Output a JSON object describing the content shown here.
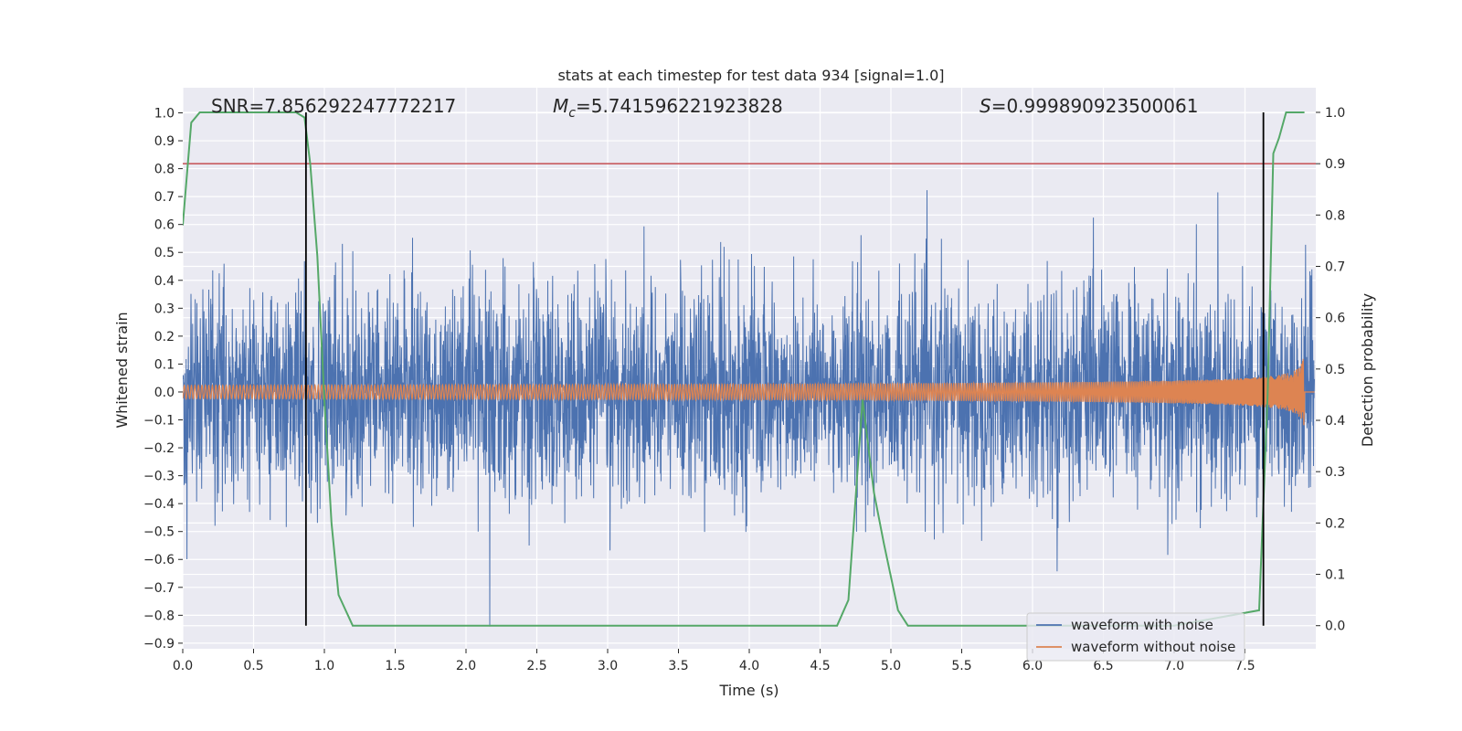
{
  "chart_data": {
    "type": "line",
    "title": "stats at each timestep for test data 934 [signal=1.0]",
    "xlabel": "Time (s)",
    "ylabel": "Whitened strain",
    "y2label": "Detection probability",
    "xlim": [
      0.0,
      8.0
    ],
    "ylim": [
      -0.92,
      1.09
    ],
    "y2lim": [
      -0.045,
      1.048
    ],
    "x_ticks": [
      "0.0",
      "0.5",
      "1.0",
      "1.5",
      "2.0",
      "2.5",
      "3.0",
      "3.5",
      "4.0",
      "4.5",
      "5.0",
      "5.5",
      "6.0",
      "6.5",
      "7.0",
      "7.5"
    ],
    "y_ticks": [
      "−0.9",
      "−0.8",
      "−0.7",
      "−0.6",
      "−0.5",
      "−0.4",
      "−0.3",
      "−0.2",
      "−0.1",
      "0.0",
      "0.1",
      "0.2",
      "0.3",
      "0.4",
      "0.5",
      "0.6",
      "0.7",
      "0.8",
      "0.9",
      "1.0"
    ],
    "y2_ticks": [
      "0.0",
      "0.1",
      "0.2",
      "0.3",
      "0.4",
      "0.5",
      "0.6",
      "0.7",
      "0.8",
      "0.9",
      "1.0"
    ],
    "grid": true,
    "legend": {
      "position": "lower-right",
      "entries": [
        "waveform with noise",
        "waveform without noise"
      ]
    },
    "annotations": {
      "snr": "SNR=7.856292247772217",
      "mc_symbol": "M",
      "mc_sub": "c",
      "mc_value": "=5.741596221923828",
      "s_symbol": "S",
      "s_value": "=0.999890923500061"
    },
    "series": [
      {
        "name": "waveform with noise",
        "color": "#4c72b0",
        "envelope_max": 1.0,
        "envelope_min": -0.84,
        "typical_amplitude": 0.45,
        "sample_rate_hz": 512
      },
      {
        "name": "waveform without noise",
        "color": "#dd8452",
        "kind": "chirp",
        "merger_time_s": 7.92,
        "peak_amplitude": 0.16
      },
      {
        "name": "Detection probability",
        "axis": "right",
        "color": "#55a868",
        "x": [
          0.0,
          0.06,
          0.12,
          0.2,
          0.5,
          0.8,
          0.86,
          0.9,
          0.95,
          1.0,
          1.05,
          1.1,
          1.2,
          1.5,
          2.0,
          3.0,
          4.0,
          4.5,
          4.62,
          4.7,
          4.8,
          4.88,
          4.95,
          5.05,
          5.12,
          5.2,
          5.5,
          6.0,
          7.0,
          7.6,
          7.66,
          7.7,
          7.74,
          7.79,
          7.85,
          7.92
        ],
        "y": [
          0.78,
          0.98,
          1.0,
          1.0,
          1.0,
          1.0,
          0.99,
          0.9,
          0.72,
          0.44,
          0.2,
          0.06,
          0.0,
          0.0,
          0.0,
          0.0,
          0.0,
          0.0,
          0.0,
          0.05,
          0.44,
          0.26,
          0.16,
          0.03,
          0.0,
          0.0,
          0.0,
          0.0,
          0.0,
          0.03,
          0.45,
          0.92,
          0.95,
          1.0,
          1.0,
          1.0
        ]
      },
      {
        "name": "threshold",
        "axis": "right",
        "color": "#c44e52",
        "value": 0.9
      }
    ],
    "vertical_markers_s": [
      0.87,
      7.63
    ]
  }
}
